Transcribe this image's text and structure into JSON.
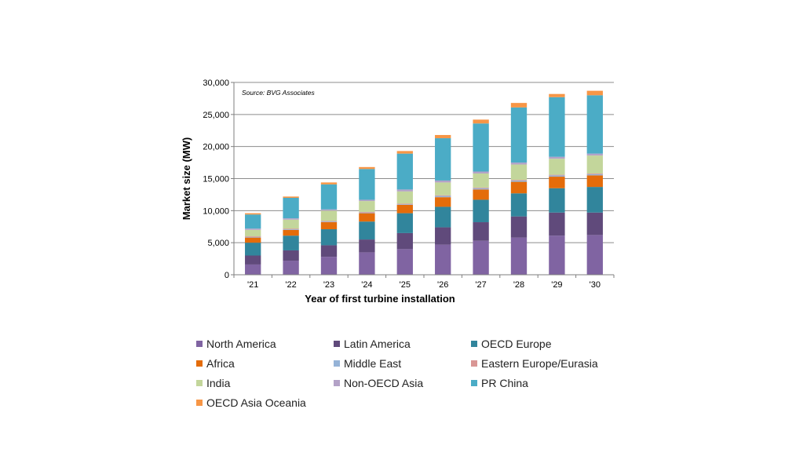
{
  "chart_data": {
    "type": "bar",
    "stacked": true,
    "annotation": "Source: BVG Associates",
    "xlabel": "Year of first turbine installation",
    "ylabel": "Market size (MW)",
    "ylim": [
      0,
      30000
    ],
    "yticks": [
      0,
      5000,
      10000,
      15000,
      20000,
      25000,
      30000
    ],
    "ytick_labels": [
      "0",
      "5,000",
      "10,000",
      "15,000",
      "20,000",
      "25,000",
      "30,000"
    ],
    "grid": true,
    "legend_position": "bottom",
    "categories": [
      "'21",
      "'22",
      "'23",
      "'24",
      "'25",
      "'26",
      "'27",
      "'28",
      "'29",
      "'30"
    ],
    "series": [
      {
        "name": "North America",
        "color": "#8064a2",
        "values": [
          1600,
          2200,
          2800,
          3500,
          4000,
          4700,
          5300,
          5800,
          6100,
          6200
        ]
      },
      {
        "name": "Latin America",
        "color": "#604a7b",
        "values": [
          1400,
          1600,
          1800,
          2000,
          2500,
          2700,
          2900,
          3300,
          3600,
          3500
        ]
      },
      {
        "name": "OECD Europe",
        "color": "#31859c",
        "values": [
          2000,
          2300,
          2500,
          2800,
          3100,
          3200,
          3500,
          3600,
          3800,
          4000
        ]
      },
      {
        "name": "Africa",
        "color": "#e46c0a",
        "values": [
          800,
          900,
          1100,
          1300,
          1300,
          1500,
          1600,
          1800,
          1800,
          1800
        ]
      },
      {
        "name": "Middle East",
        "color": "#95b3d7",
        "values": [
          100,
          100,
          100,
          100,
          100,
          200,
          200,
          200,
          200,
          200
        ]
      },
      {
        "name": "Eastern Europe/Eurasia",
        "color": "#d99694",
        "values": [
          100,
          100,
          100,
          100,
          100,
          100,
          100,
          100,
          100,
          100
        ]
      },
      {
        "name": "India",
        "color": "#c3d69b",
        "values": [
          1000,
          1400,
          1600,
          1700,
          1900,
          2000,
          2200,
          2400,
          2500,
          2800
        ]
      },
      {
        "name": "Non-OECD Asia",
        "color": "#b3a2c7",
        "values": [
          200,
          200,
          200,
          200,
          300,
          300,
          300,
          300,
          300,
          300
        ]
      },
      {
        "name": "PR China",
        "color": "#4bacc6",
        "values": [
          2200,
          3200,
          3900,
          4800,
          5600,
          6600,
          7500,
          8600,
          9300,
          9100
        ]
      },
      {
        "name": "OECD Asia Oceania",
        "color": "#f79646",
        "values": [
          200,
          200,
          300,
          300,
          400,
          500,
          600,
          700,
          500,
          700
        ]
      }
    ]
  }
}
